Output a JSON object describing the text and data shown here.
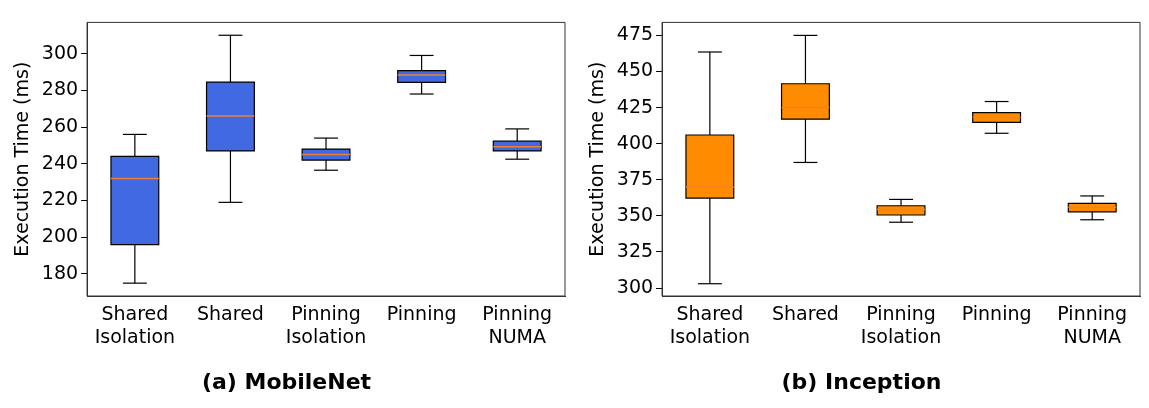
{
  "chart_data": [
    {
      "type": "box",
      "title": "(a) MobileNet",
      "ylabel": "Execution Time (ms)",
      "categories": [
        "Shared Isolation",
        "Shared",
        "Pinning Isolation",
        "Pinning",
        "Pinning NUMA"
      ],
      "ylim": [
        168,
        317
      ],
      "yticks": [
        180,
        200,
        220,
        240,
        260,
        280,
        300
      ],
      "grid": false,
      "series": [
        {
          "color": "#4169e1",
          "boxes": [
            {
              "low": 175,
              "q1": 196,
              "median": 232,
              "q3": 244,
              "high": 256
            },
            {
              "low": 219,
              "q1": 247,
              "median": 266,
              "q3": 284.5,
              "high": 310
            },
            {
              "low": 236.5,
              "q1": 242,
              "median": 245,
              "q3": 248,
              "high": 254
            },
            {
              "low": 278,
              "q1": 284.3,
              "median": 288.3,
              "q3": 290.7,
              "high": 299
            },
            {
              "low": 242.5,
              "q1": 247,
              "median": 249.3,
              "q3": 252.3,
              "high": 259
            }
          ]
        }
      ]
    },
    {
      "type": "box",
      "title": "(b) Inception",
      "ylabel": "Execution Time (ms)",
      "categories": [
        "Shared Isolation",
        "Shared",
        "Pinning Isolation",
        "Pinning",
        "Pinning NUMA"
      ],
      "ylim": [
        294.5,
        484
      ],
      "yticks": [
        300,
        325,
        350,
        375,
        400,
        425,
        450,
        475
      ],
      "grid": false,
      "series": [
        {
          "color": "#ff8c00",
          "boxes": [
            {
              "low": 303,
              "q1": 362.3,
              "median": 370,
              "q3": 406,
              "high": 463.5
            },
            {
              "low": 387,
              "q1": 417,
              "median": 425,
              "q3": 441.5,
              "high": 475
            },
            {
              "low": 345.6,
              "q1": 350.6,
              "median": 354.4,
              "q3": 357,
              "high": 361.4
            },
            {
              "low": 407.2,
              "q1": 414.7,
              "median": 418.2,
              "q3": 421.5,
              "high": 429.2
            },
            {
              "low": 347.3,
              "q1": 352.8,
              "median": 355.9,
              "q3": 358.6,
              "high": 363.8
            }
          ]
        }
      ]
    }
  ]
}
